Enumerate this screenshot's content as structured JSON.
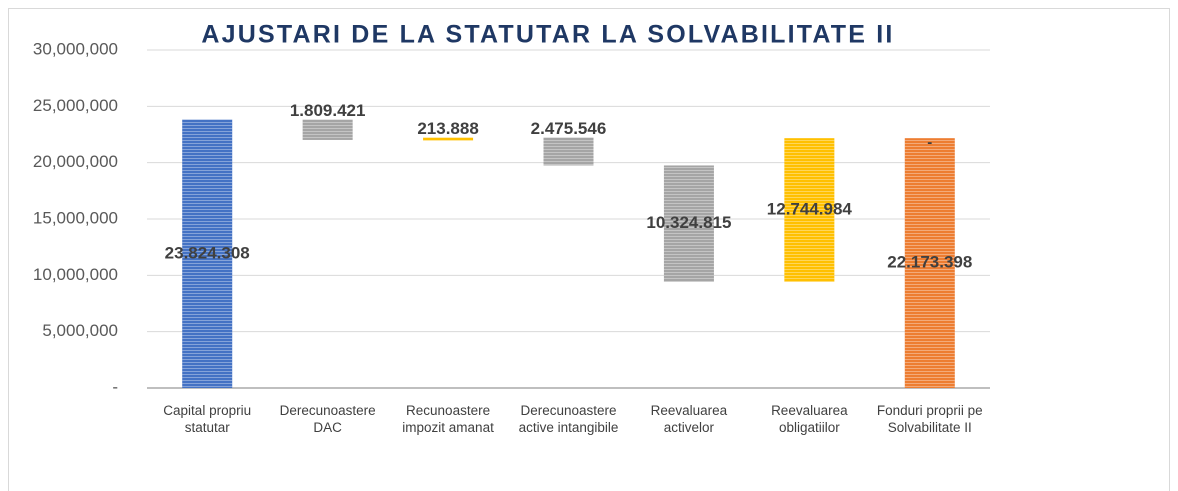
{
  "chart_data": {
    "type": "waterfall",
    "title": "AJUSTARI DE LA STATUTAR LA SOLVABILITATE II",
    "categories": [
      "Capital propriu statutar",
      "Derecunoastere DAC",
      "Recunoastere impozit amanat",
      "Derecunoastere active intangibile",
      "Reevaluarea activelor",
      "Reevaluarea obligatiilor",
      "Fonduri proprii pe Solvabilitate II"
    ],
    "measure": [
      "total",
      "relative",
      "relative",
      "relative",
      "relative",
      "relative",
      "total"
    ],
    "values": [
      23824308,
      -1809421,
      213888,
      -2475546,
      -10324815,
      12744984,
      22173398
    ],
    "value_labels": [
      "23.824.308",
      "1.809.421",
      "213.888",
      "2.475.546",
      "10.324.815",
      "12.744.984",
      "22.173.398"
    ],
    "colors": [
      "#4472c4",
      "#a5a5a5",
      "#ffc000",
      "#a5a5a5",
      "#a5a5a5",
      "#ffc000",
      "#ed7d31"
    ],
    "annotations": [
      "-"
    ],
    "ylim": [
      0,
      30000000
    ],
    "yticks": [
      {
        "value": 0,
        "label": "-"
      },
      {
        "value": 5000000,
        "label": "5,000,000"
      },
      {
        "value": 10000000,
        "label": "10,000,000"
      },
      {
        "value": 15000000,
        "label": "15,000,000"
      },
      {
        "value": 20000000,
        "label": "20,000,000"
      },
      {
        "value": 25000000,
        "label": "25,000,000"
      },
      {
        "value": 30000000,
        "label": "30,000,000"
      }
    ],
    "grid": true
  }
}
